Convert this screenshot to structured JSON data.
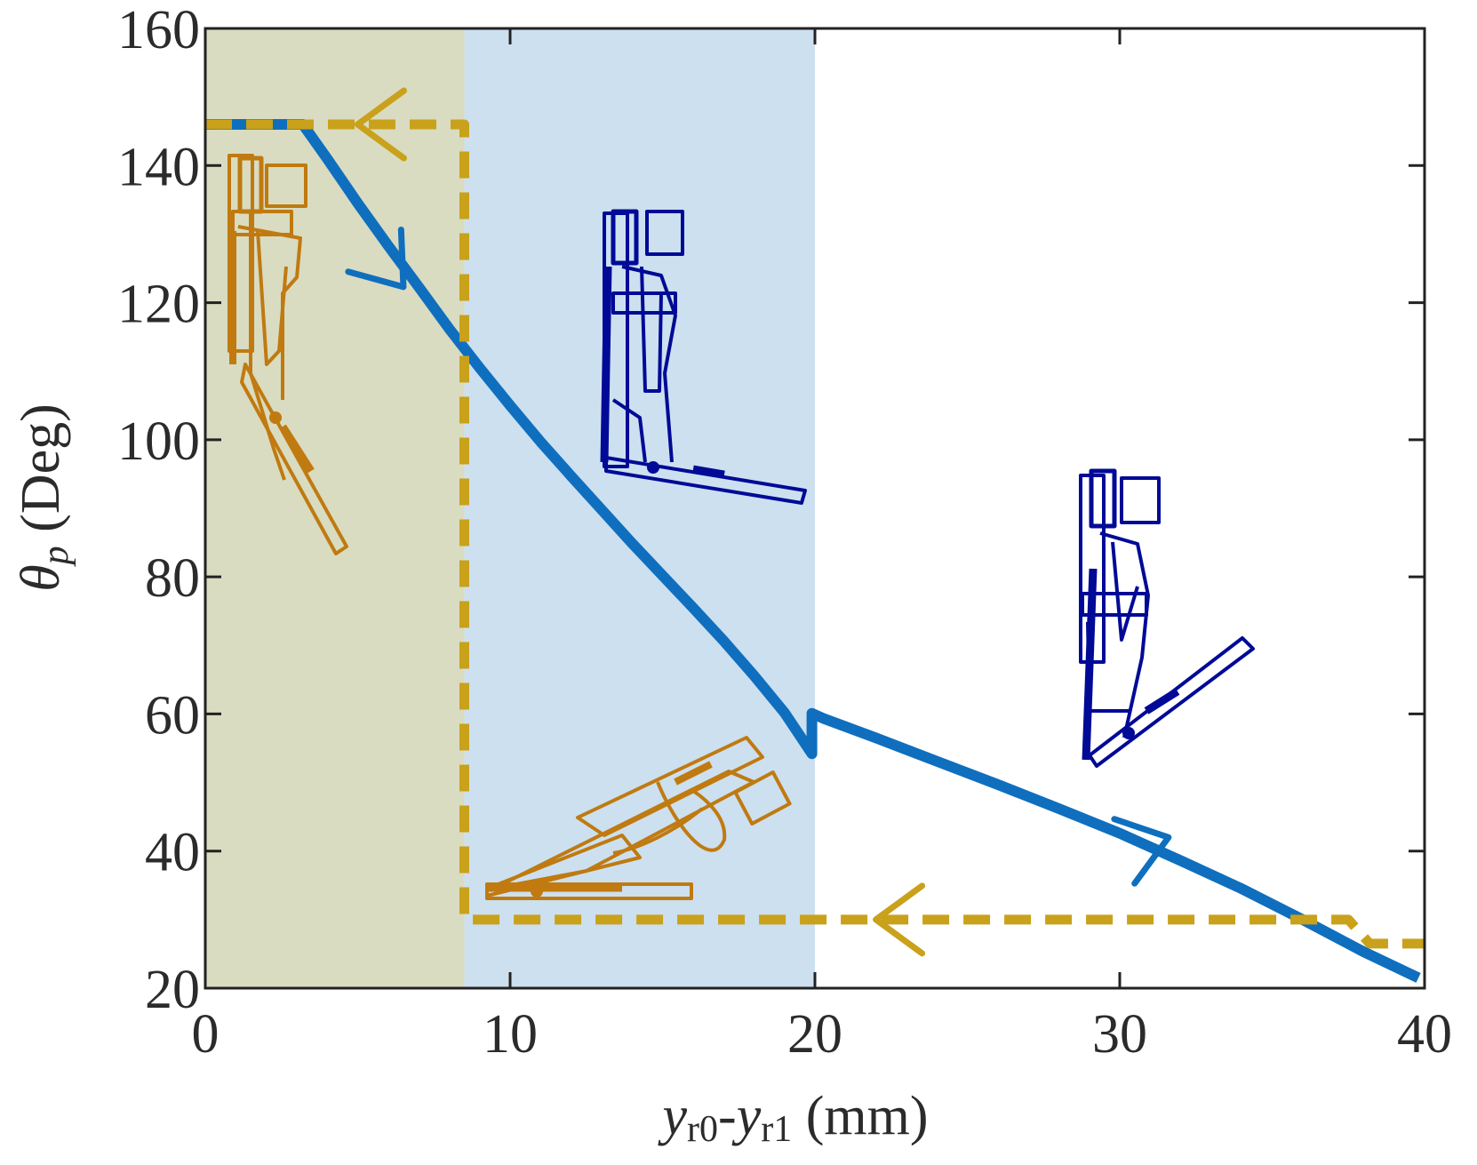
{
  "chart_data": {
    "type": "line",
    "xlabel": {
      "main": "y",
      "sub": "r0",
      "dash": "-",
      "main2": "y",
      "sub2": "r1",
      "unit": " (mm)"
    },
    "ylabel": {
      "main": "θ",
      "sub": "p",
      "unit": " (Deg)"
    },
    "xlim": [
      0,
      40
    ],
    "ylim": [
      20,
      160
    ],
    "xticks": [
      0,
      10,
      20,
      30,
      40
    ],
    "yticks": [
      20,
      40,
      60,
      80,
      100,
      120,
      140,
      160
    ],
    "grid": false,
    "regions": [
      {
        "x0": 0,
        "x1": 8.5,
        "color": "#d9dcc1"
      },
      {
        "x0": 8.5,
        "x1": 20,
        "color": "#cce0f0"
      }
    ],
    "series": [
      {
        "style": "solid",
        "color": "#0f6fbe",
        "x": [
          0,
          3.2,
          4,
          5,
          6,
          7,
          8,
          9,
          10,
          11,
          12,
          13,
          14,
          15,
          16,
          17,
          18,
          19,
          19.9,
          19.9,
          20.3,
          22,
          24,
          26,
          28,
          30,
          32,
          34,
          36,
          38,
          39.8
        ],
        "y": [
          146,
          146,
          141,
          134.5,
          128.3,
          122.3,
          116.2,
          110.5,
          105,
          99.7,
          94.7,
          89.8,
          84.9,
          80.2,
          75.5,
          70.7,
          65.6,
          60.2,
          54.2,
          60.1,
          59.3,
          56.5,
          53.1,
          49.7,
          46.2,
          42.6,
          38.6,
          34.5,
          30,
          25.3,
          21.5
        ]
      },
      {
        "style": "dashed",
        "color": "#c9a11a",
        "x": [
          0,
          8.5,
          8.5,
          37.5,
          38.2,
          40
        ],
        "y": [
          146,
          146,
          30,
          30,
          26.5,
          26.5
        ]
      }
    ],
    "arrows": [
      {
        "series": 0,
        "x": 6.5,
        "y": 122.3,
        "direction": "down-right"
      },
      {
        "series": 0,
        "x": 31.6,
        "y": 42,
        "direction": "right"
      },
      {
        "series": 1,
        "x": 5,
        "y": 146,
        "direction": "left"
      },
      {
        "series": 1,
        "x": 22,
        "y": 30,
        "direction": "left"
      }
    ],
    "illustrations": [
      {
        "name": "orange-vertical-figure",
        "color": "#c07a10"
      },
      {
        "name": "orange-flat-figure",
        "color": "#c07a10"
      },
      {
        "name": "blue-horizontal-figure",
        "color": "#000a96"
      },
      {
        "name": "blue-angled-figure",
        "color": "#000a96"
      }
    ]
  }
}
